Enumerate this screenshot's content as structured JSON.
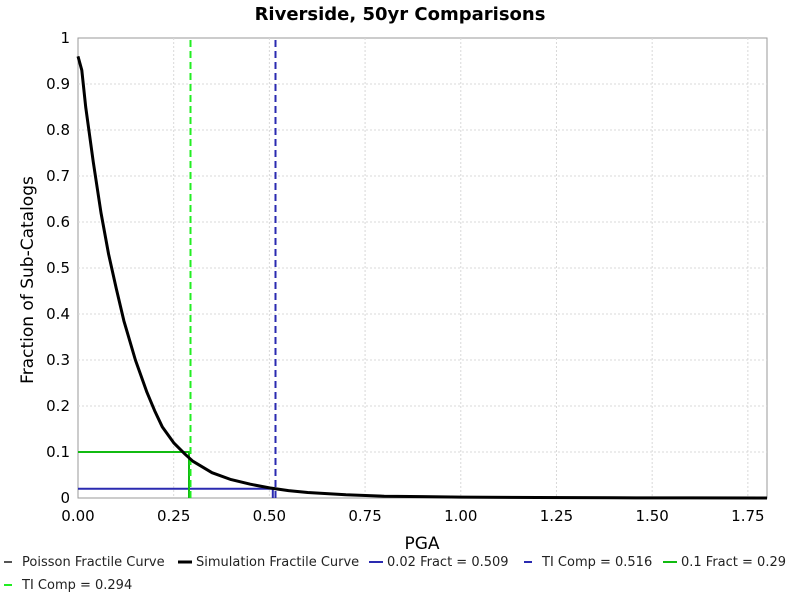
{
  "chart_data": {
    "type": "line",
    "title": "Riverside, 50yr Comparisons",
    "xlabel": "PGA",
    "ylabel": "Fraction of Sub-Catalogs",
    "xlim": [
      0,
      1.8
    ],
    "ylim": [
      0,
      1
    ],
    "x_ticks": [
      "0.00",
      "0.25",
      "0.50",
      "0.75",
      "1.00",
      "1.25",
      "1.50",
      "1.75"
    ],
    "x_tick_values": [
      0,
      0.25,
      0.5,
      0.75,
      1.0,
      1.25,
      1.5,
      1.75
    ],
    "y_ticks": [
      "0",
      "0.1",
      "0.2",
      "0.3",
      "0.4",
      "0.5",
      "0.6",
      "0.7",
      "0.8",
      "0.9",
      "1"
    ],
    "y_tick_values": [
      0,
      0.1,
      0.2,
      0.3,
      0.4,
      0.5,
      0.6,
      0.7,
      0.8,
      0.9,
      1.0
    ],
    "grid": true,
    "legend_position": "bottom",
    "series": [
      {
        "name": "Poisson Fractile Curve",
        "color": "#555555",
        "style": "dashed",
        "x": [
          0,
          0.01,
          0.02,
          0.04,
          0.06,
          0.08,
          0.1,
          0.12,
          0.15,
          0.18,
          0.2,
          0.22,
          0.25,
          0.28,
          0.3,
          0.35,
          0.4,
          0.45,
          0.5,
          0.55,
          0.6,
          0.7,
          0.8,
          0.9,
          1.0,
          1.2,
          1.4,
          1.6,
          1.8
        ],
        "y": [
          0.96,
          0.93,
          0.85,
          0.73,
          0.62,
          0.53,
          0.455,
          0.385,
          0.3,
          0.23,
          0.19,
          0.155,
          0.12,
          0.095,
          0.08,
          0.055,
          0.04,
          0.03,
          0.022,
          0.016,
          0.012,
          0.007,
          0.004,
          0.003,
          0.002,
          0.001,
          0.0005,
          0.0002,
          0.0001
        ]
      },
      {
        "name": "Simulation Fractile Curve",
        "color": "#000000",
        "style": "solid",
        "x": [
          0,
          0.01,
          0.02,
          0.04,
          0.06,
          0.08,
          0.1,
          0.12,
          0.15,
          0.18,
          0.2,
          0.22,
          0.25,
          0.28,
          0.3,
          0.35,
          0.4,
          0.45,
          0.5,
          0.55,
          0.6,
          0.7,
          0.8,
          0.9,
          1.0,
          1.2,
          1.4,
          1.6,
          1.8
        ],
        "y": [
          0.96,
          0.93,
          0.85,
          0.73,
          0.62,
          0.53,
          0.455,
          0.385,
          0.3,
          0.23,
          0.19,
          0.155,
          0.12,
          0.095,
          0.08,
          0.055,
          0.04,
          0.03,
          0.022,
          0.016,
          0.012,
          0.007,
          0.004,
          0.003,
          0.002,
          0.001,
          0.0005,
          0.0002,
          0.0001
        ]
      },
      {
        "name": "0.02 Fract = 0.509",
        "color": "#2a2ab0",
        "style": "solid",
        "x": [
          0,
          0.509,
          0.509
        ],
        "y": [
          0.02,
          0.02,
          0
        ]
      },
      {
        "name": "TI Comp = 0.516",
        "color": "#2a2ab0",
        "style": "dashed",
        "x": [
          0.516,
          0.516
        ],
        "y": [
          0,
          1
        ]
      },
      {
        "name": "0.1 Fract = 0.29",
        "color": "#11bb11",
        "style": "solid",
        "x": [
          0,
          0.29,
          0.29
        ],
        "y": [
          0.1,
          0.1,
          0
        ]
      },
      {
        "name": "TI Comp = 0.294",
        "color": "#22ee22",
        "style": "dashed",
        "x": [
          0.294,
          0.294
        ],
        "y": [
          0,
          1
        ]
      }
    ]
  }
}
